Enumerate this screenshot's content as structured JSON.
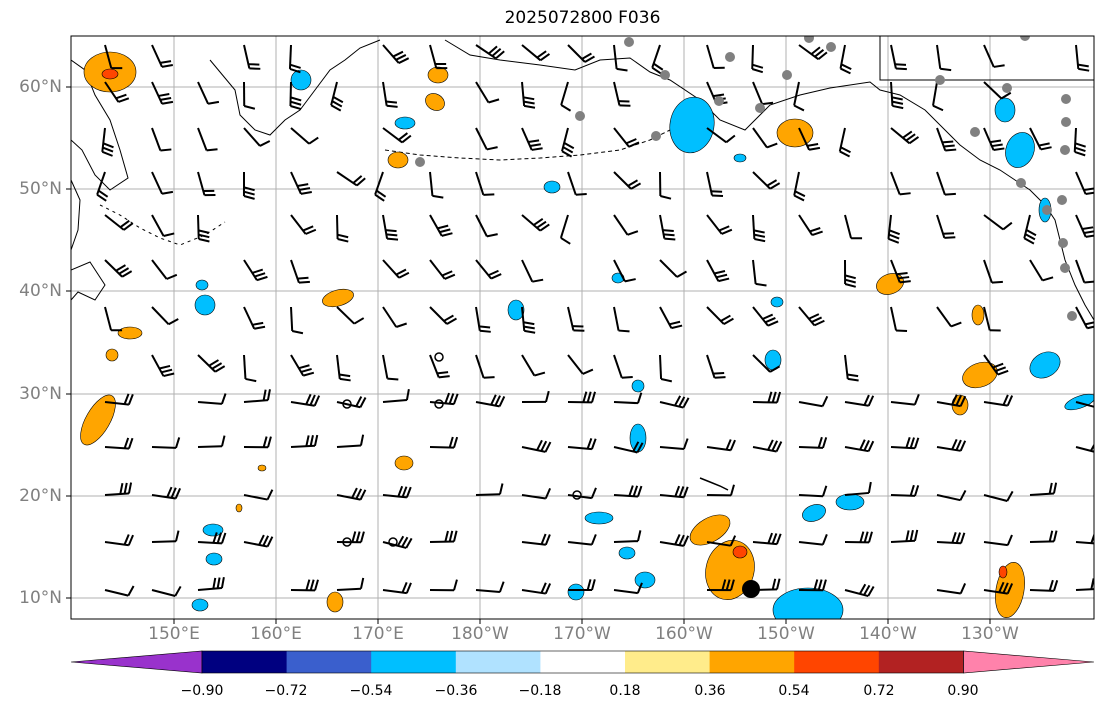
{
  "title": "2025072800 F036",
  "lat_labels": [
    "60°N",
    "50°N",
    "40°N",
    "30°N",
    "20°N",
    "10°N"
  ],
  "lon_labels": [
    "150°E",
    "160°E",
    "170°E",
    "180°W",
    "170°W",
    "160°W",
    "150°W",
    "140°W",
    "130°W"
  ],
  "colorbar": {
    "tick_labels": [
      "−0.90",
      "−0.72",
      "−0.54",
      "−0.36",
      "−0.18",
      "0.18",
      "0.36",
      "0.54",
      "0.72",
      "0.90"
    ],
    "colors": [
      "#9932cc",
      "#000080",
      "#3a5fcd",
      "#00bfff",
      "#b0e2ff",
      "#ffffff",
      "#ffec8b",
      "#ffa500",
      "#ff4500",
      "#b22222",
      "#ff82ab"
    ],
    "low_extend": "#9932cc",
    "high_extend": "#ff82ab"
  },
  "colors": {
    "positive": "#ffa500",
    "positive_strong": "#ff4500",
    "negative": "#00bfff",
    "negative_light": "#b0e2ff",
    "coast": "#000000",
    "grid": "#b0b0b0",
    "station": "#808080"
  }
}
